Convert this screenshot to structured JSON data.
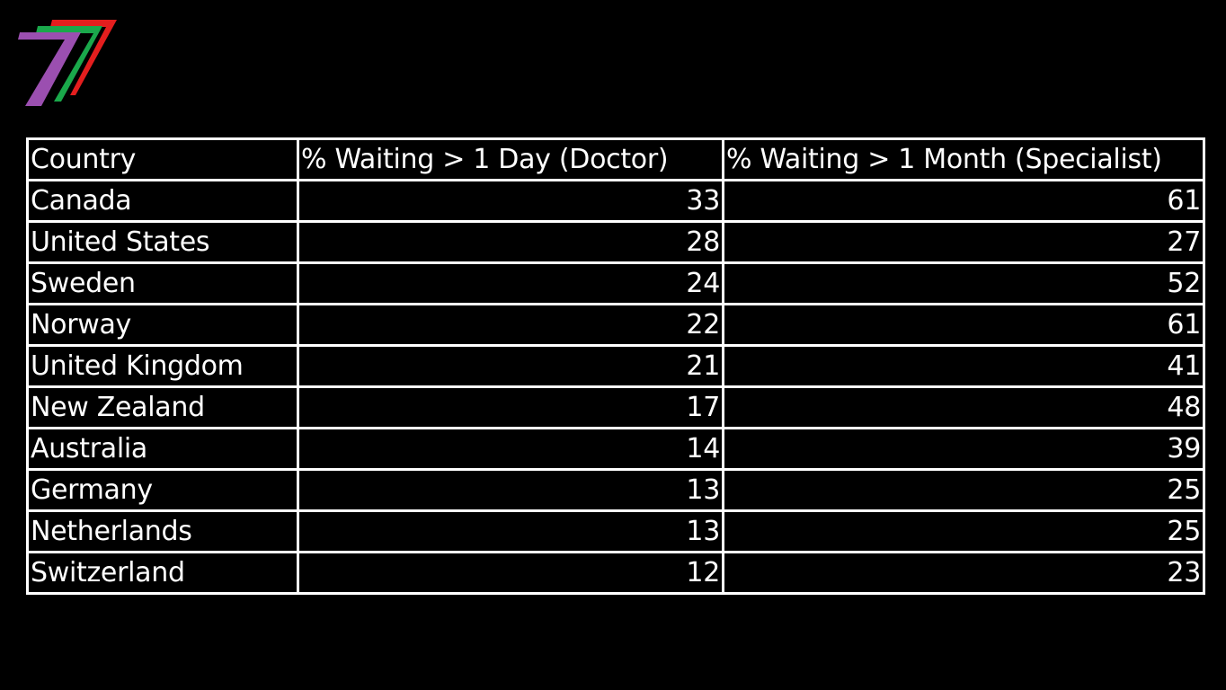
{
  "logo": {
    "icon": "seven-stripes-logo-icon",
    "colors": [
      "#e41e1e",
      "#1aa84b",
      "#9b4fb0"
    ]
  },
  "table": {
    "headers": [
      "Country",
      "% Waiting > 1 Day (Doctor)",
      "% Waiting > 1 Month (Specialist)"
    ],
    "rows": [
      {
        "country": "Canada",
        "doctor": "33",
        "specialist": "61"
      },
      {
        "country": "United States",
        "doctor": "28",
        "specialist": "27"
      },
      {
        "country": "Sweden",
        "doctor": "24",
        "specialist": "52"
      },
      {
        "country": "Norway",
        "doctor": "22",
        "specialist": "61"
      },
      {
        "country": "United Kingdom",
        "doctor": "21",
        "specialist": "41"
      },
      {
        "country": "New Zealand",
        "doctor": "17",
        "specialist": "48"
      },
      {
        "country": "Australia",
        "doctor": "14",
        "specialist": "39"
      },
      {
        "country": "Germany",
        "doctor": "13",
        "specialist": "25"
      },
      {
        "country": "Netherlands",
        "doctor": "13",
        "specialist": "25"
      },
      {
        "country": "Switzerland",
        "doctor": "12",
        "specialist": "23"
      }
    ]
  }
}
